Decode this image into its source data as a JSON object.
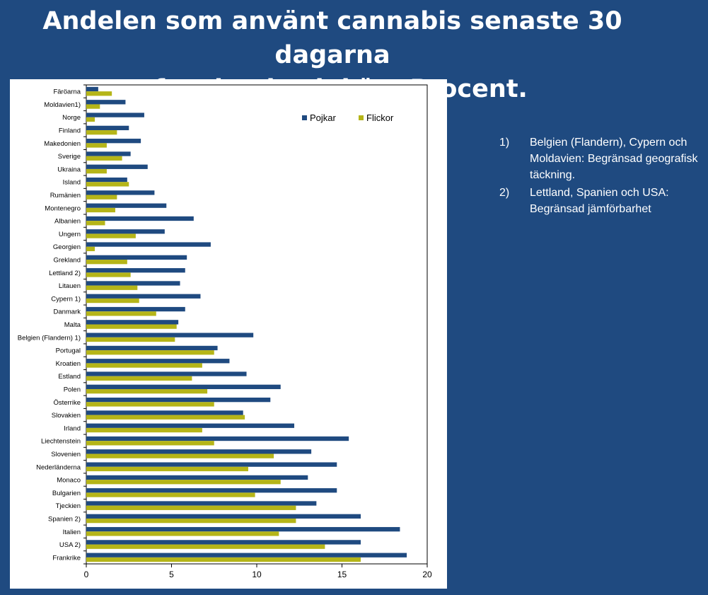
{
  "title": {
    "line1": "Andelen som använt cannabis senaste 30 dagarna",
    "line2": "efter land och kön. Procent."
  },
  "notes": [
    {
      "num": "1)",
      "text": "Belgien (Flandern), Cypern och Moldavien: Begränsad geografisk täckning."
    },
    {
      "num": "2)",
      "text": "Lettland, Spanien och USA: Begränsad jämförbarhet"
    }
  ],
  "colors": {
    "boys": "#1f4a80",
    "girls": "#b5b518"
  },
  "chart_data": {
    "type": "bar",
    "orientation": "horizontal",
    "title": "",
    "xlabel": "",
    "ylabel": "",
    "xlim": [
      0,
      20
    ],
    "xticks": [
      0,
      5,
      10,
      15,
      20
    ],
    "legend_position": "top-right",
    "grid": false,
    "categories": [
      "Färöarna",
      "Moldavien1)",
      "Norge",
      "Finland",
      "Makedonien",
      "Sverige",
      "Ukraina",
      "Island",
      "Rumänien",
      "Montenegro",
      "Albanien",
      "Ungern",
      "Georgien",
      "Grekland",
      "Lettland 2)",
      "Litauen",
      "Cypern 1)",
      "Danmark",
      "Malta",
      "Belgien (Flandern) 1)",
      "Portugal",
      "Kroatien",
      "Estland",
      "Polen",
      "Österrike",
      "Slovakien",
      "Irland",
      "Liechtenstein",
      "Slovenien",
      "Nederländerna",
      "Monaco",
      "Bulgarien",
      "Tjeckien",
      "Spanien 2)",
      "Italien",
      "USA 2)",
      "Frankrike"
    ],
    "series": [
      {
        "name": "Pojkar",
        "values": [
          0.7,
          2.3,
          3.4,
          2.5,
          3.2,
          2.6,
          3.6,
          2.4,
          4.0,
          4.7,
          6.3,
          4.6,
          7.3,
          5.9,
          5.8,
          5.5,
          6.7,
          5.8,
          5.4,
          9.8,
          7.7,
          8.4,
          9.4,
          11.4,
          10.8,
          9.2,
          12.2,
          15.4,
          13.2,
          14.7,
          13.0,
          14.7,
          13.5,
          16.1,
          18.4,
          16.1,
          18.8
        ]
      },
      {
        "name": "Flickor",
        "values": [
          1.5,
          0.8,
          0.5,
          1.8,
          1.2,
          2.1,
          1.2,
          2.5,
          1.8,
          1.7,
          1.1,
          2.9,
          0.5,
          2.4,
          2.6,
          3.0,
          3.1,
          4.1,
          5.3,
          5.2,
          7.5,
          6.8,
          6.2,
          7.1,
          7.5,
          9.3,
          6.8,
          7.5,
          11.0,
          9.5,
          11.4,
          9.9,
          12.3,
          12.3,
          11.3,
          14.0,
          16.1
        ]
      }
    ]
  }
}
